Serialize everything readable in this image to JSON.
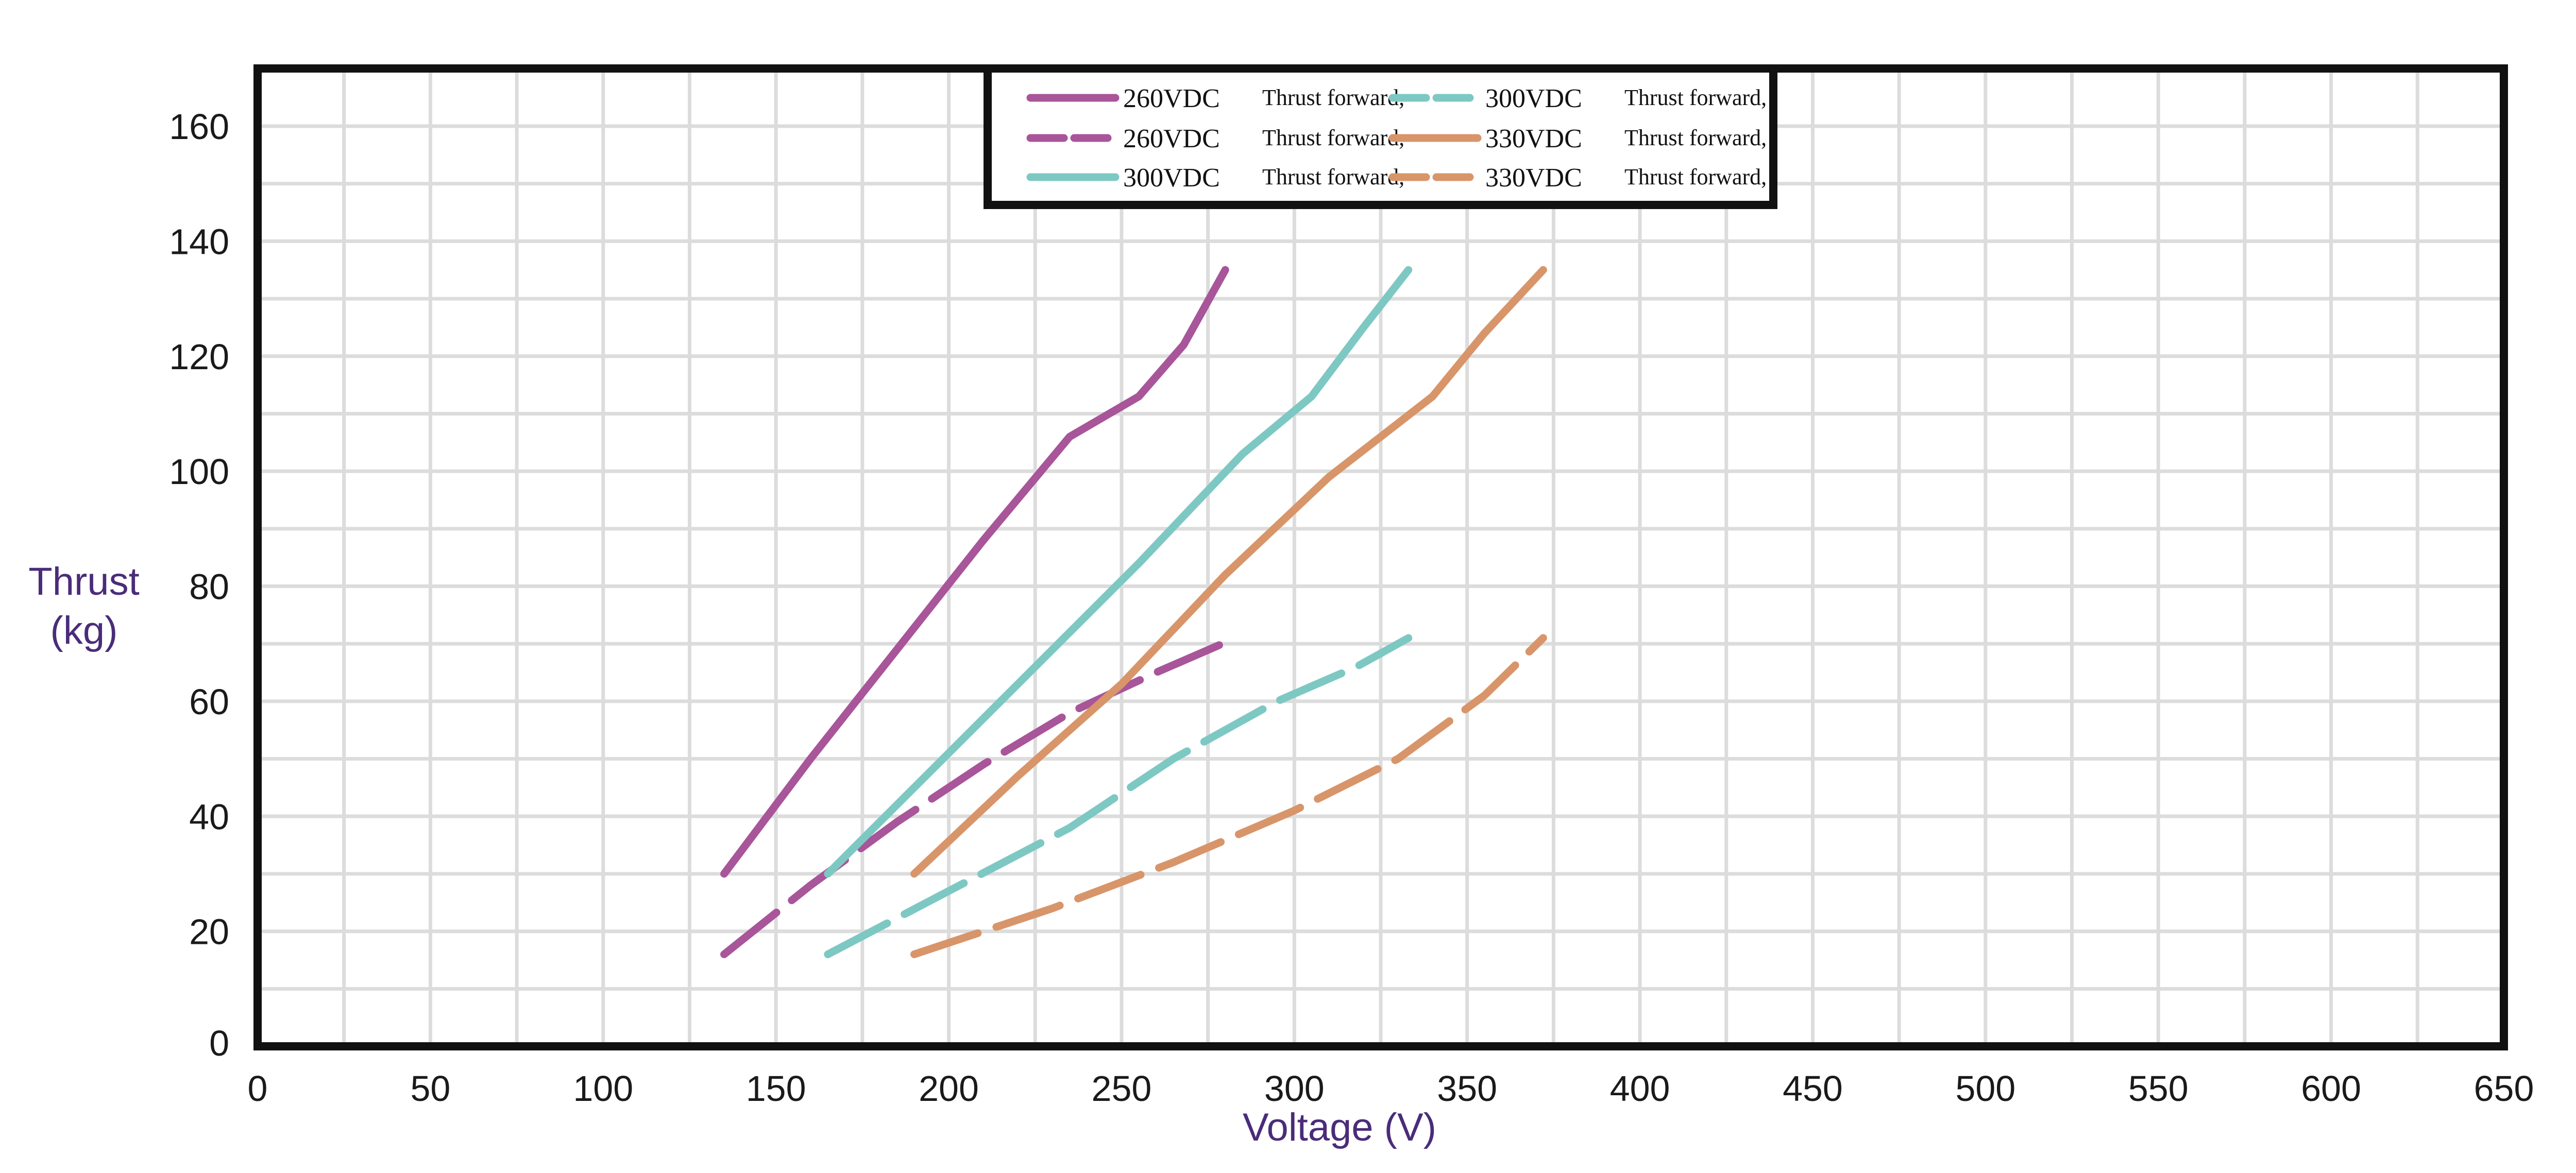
{
  "chart_data": {
    "type": "line",
    "xlabel": "Voltage (V)",
    "ylabel_lines": [
      "Thrust",
      "(kg)"
    ],
    "xlim": [
      0,
      650
    ],
    "ylim": [
      0,
      170
    ],
    "x_ticks": [
      "0",
      "50",
      "100",
      "150",
      "200",
      "250",
      "300",
      "350",
      "400",
      "450",
      "500",
      "550",
      "600",
      "650"
    ],
    "y_ticks": [
      "0",
      "20",
      "40",
      "60",
      "80",
      "100",
      "120",
      "140",
      "160"
    ],
    "grid": true,
    "legend_placement": "top-center",
    "series": [
      {
        "name_voltage": "260VDC",
        "name_text": "Thrust forward,",
        "color": "#a8559a",
        "dash": "solid",
        "points": [
          [
            135,
            30
          ],
          [
            160,
            50
          ],
          [
            185,
            69
          ],
          [
            210,
            88
          ],
          [
            235,
            106
          ],
          [
            255,
            113
          ],
          [
            268,
            122
          ],
          [
            280,
            135
          ]
        ]
      },
      {
        "name_voltage": "260VDC",
        "name_text": "Thrust forward,",
        "color": "#a8559a",
        "dash": "dashed",
        "points": [
          [
            135,
            16
          ],
          [
            160,
            28
          ],
          [
            185,
            39
          ],
          [
            210,
            49
          ],
          [
            235,
            58
          ],
          [
            260,
            65
          ],
          [
            283,
            71
          ]
        ]
      },
      {
        "name_voltage": "300VDC",
        "name_text": "Thrust forward,",
        "color": "#7ec8c3",
        "dash": "solid",
        "points": [
          [
            165,
            30
          ],
          [
            195,
            48
          ],
          [
            225,
            66
          ],
          [
            255,
            84
          ],
          [
            285,
            103
          ],
          [
            305,
            113
          ],
          [
            320,
            125
          ],
          [
            333,
            135
          ]
        ]
      },
      {
        "name_voltage": "300VDC",
        "name_text": "Thrust forward,",
        "color": "#7ec8c3",
        "dash": "dashed",
        "points": [
          [
            165,
            16
          ],
          [
            200,
            27
          ],
          [
            235,
            38
          ],
          [
            265,
            50
          ],
          [
            295,
            60
          ],
          [
            318,
            66
          ],
          [
            333,
            71
          ]
        ]
      },
      {
        "name_voltage": "330VDC",
        "name_text": "Thrust forward,",
        "color": "#d8956a",
        "dash": "solid",
        "points": [
          [
            190,
            30
          ],
          [
            220,
            47
          ],
          [
            250,
            63
          ],
          [
            280,
            82
          ],
          [
            310,
            99
          ],
          [
            340,
            113
          ],
          [
            355,
            124
          ],
          [
            372,
            135
          ]
        ]
      },
      {
        "name_voltage": "330VDC",
        "name_text": "Thrust forward,",
        "color": "#d8956a",
        "dash": "dashed",
        "points": [
          [
            190,
            16
          ],
          [
            230,
            24
          ],
          [
            265,
            32
          ],
          [
            300,
            41
          ],
          [
            330,
            50
          ],
          [
            355,
            61
          ],
          [
            372,
            71
          ]
        ]
      }
    ],
    "legend_order": [
      0,
      3,
      1,
      4,
      2,
      5
    ]
  }
}
